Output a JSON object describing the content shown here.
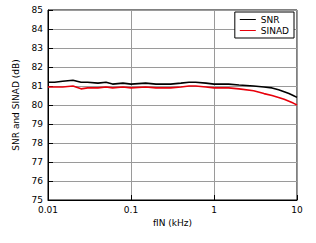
{
  "chart_data": {
    "type": "line",
    "xlabel": "fIN (kHz)",
    "ylabel": "SNR and SINAD (dB)",
    "log": "x",
    "grid": true,
    "legend": "upper right",
    "x": [
      0.01,
      0.012,
      0.015,
      0.02,
      0.025,
      0.03,
      0.04,
      0.05,
      0.06,
      0.08,
      0.1,
      0.15,
      0.2,
      0.3,
      0.4,
      0.5,
      0.6,
      0.8,
      1,
      1.5,
      2,
      3,
      4,
      5,
      6,
      7,
      8,
      9,
      10
    ],
    "series": [
      {
        "name": "SNR",
        "color": "#000000",
        "values": [
          81.2,
          81.2,
          81.25,
          81.3,
          81.2,
          81.2,
          81.15,
          81.2,
          81.1,
          81.15,
          81.1,
          81.15,
          81.1,
          81.1,
          81.15,
          81.2,
          81.2,
          81.15,
          81.1,
          81.1,
          81.05,
          81.0,
          80.95,
          80.9,
          80.8,
          80.7,
          80.6,
          80.5,
          80.4
        ]
      },
      {
        "name": "SINAD",
        "color": "#e8000b",
        "values": [
          80.95,
          80.95,
          80.95,
          81.0,
          80.85,
          80.9,
          80.9,
          80.95,
          80.9,
          80.95,
          80.9,
          80.95,
          80.9,
          80.9,
          80.95,
          81.0,
          81.0,
          80.95,
          80.9,
          80.9,
          80.85,
          80.75,
          80.6,
          80.5,
          80.4,
          80.3,
          80.2,
          80.1,
          80.0
        ]
      }
    ],
    "xlim": [
      0.01,
      10
    ],
    "xticks": [
      0.01,
      0.1,
      1,
      10
    ],
    "ylim": [
      75,
      85
    ],
    "yticks": [
      75,
      76,
      77,
      78,
      79,
      80,
      81,
      82,
      83,
      84,
      85
    ]
  }
}
